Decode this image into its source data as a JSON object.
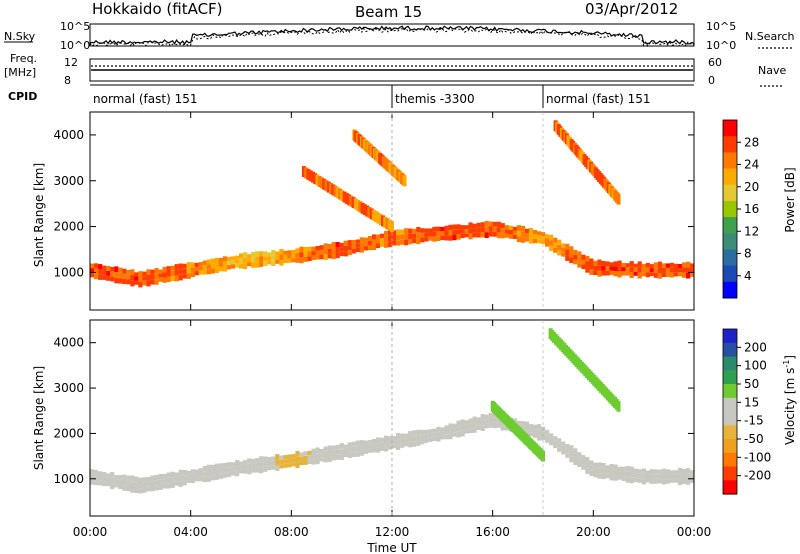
{
  "header": {
    "station": "Hokkaido (fitACF)",
    "beam": "Beam 15",
    "date": "03/Apr/2012"
  },
  "top_panels": {
    "nsky_label": "N.Sky",
    "nsearch_label": "N.Search",
    "nsky_ticks": [
      "10^5",
      "10^0"
    ],
    "freq_label_line1": "Freq.",
    "freq_label_line2": "[MHz]",
    "freq_ticks": [
      "12",
      "8"
    ],
    "nave_label": "Nave",
    "nave_ticks": [
      "60",
      "0"
    ],
    "cpid_label": "CPID",
    "cpid_segments": [
      {
        "label": "normal (fast) 151",
        "start_hour": 0,
        "end_hour": 12
      },
      {
        "label": "themis -3300",
        "start_hour": 12,
        "end_hour": 18
      },
      {
        "label": "normal (fast) 151",
        "start_hour": 18,
        "end_hour": 24
      }
    ]
  },
  "axes": {
    "xlabel": "Time UT",
    "x_ticks": [
      "00:00",
      "04:00",
      "08:00",
      "12:00",
      "16:00",
      "20:00",
      "00:00"
    ],
    "ylabel": "Slant Range [km]",
    "y_ticks": [
      "1000",
      "2000",
      "3000",
      "4000"
    ]
  },
  "colorbars": {
    "power": {
      "label": "Power [dB]",
      "ticks": [
        "28",
        "24",
        "20",
        "16",
        "12",
        "8",
        "4"
      ],
      "colors": [
        "#ff0000",
        "#ff3c00",
        "#ff7800",
        "#ffaa00",
        "#e6c832",
        "#9ac800",
        "#3fa050",
        "#3c8c78",
        "#2a6ea0",
        "#1a4ab4",
        "#0000ff"
      ]
    },
    "velocity": {
      "label": "Velocity [m s",
      "label_sup": "-1",
      "label_end": "]",
      "ticks": [
        "200",
        "100",
        "50",
        "15",
        "-15",
        "-50",
        "-100",
        "-200"
      ],
      "colors": [
        "#2020c8",
        "#2850a0",
        "#2a8a6e",
        "#30a050",
        "#6ccc30",
        "#c8c8c0",
        "#c8c8c0",
        "#e6b43c",
        "#f0a020",
        "#ff7800",
        "#ff3c00",
        "#ff0000"
      ]
    }
  },
  "chart_data": [
    {
      "type": "heatmap",
      "title": "Power [dB]",
      "xlabel": "Time UT",
      "ylabel": "Slant Range [km]",
      "x_range_hours": [
        0,
        24
      ],
      "ylim": [
        180,
        4500
      ],
      "color_range": [
        0,
        32
      ],
      "main_echo_band": {
        "time_hours": [
          0,
          2,
          4,
          6,
          8,
          10,
          12,
          14,
          16,
          18,
          20,
          22,
          24
        ],
        "range_km": [
          1050,
          850,
          1050,
          1250,
          1350,
          1500,
          1750,
          1850,
          1950,
          1750,
          1100,
          1050,
          1050
        ],
        "power_db": [
          28,
          28,
          26,
          22,
          24,
          28,
          26,
          28,
          28,
          24,
          28,
          28,
          28
        ]
      },
      "upper_echo_traces": [
        {
          "time_hours": [
            8.5,
            12
          ],
          "range_km": [
            3200,
            2000
          ]
        },
        {
          "time_hours": [
            10.5,
            12.5
          ],
          "range_km": [
            4000,
            3000
          ]
        },
        {
          "time_hours": [
            18.5,
            21
          ],
          "range_km": [
            4200,
            2600
          ]
        }
      ]
    },
    {
      "type": "heatmap",
      "title": "Velocity [m s-1]",
      "xlabel": "Time UT",
      "ylabel": "Slant Range [km]",
      "x_range_hours": [
        0,
        24
      ],
      "ylim": [
        180,
        4500
      ],
      "color_range": [
        -200,
        200
      ],
      "main_echo_band": {
        "time_hours": [
          0,
          2,
          4,
          6,
          8,
          10,
          12,
          14,
          16,
          18,
          20,
          22,
          24
        ],
        "range_km": [
          1050,
          850,
          1050,
          1250,
          1400,
          1600,
          1800,
          2000,
          2300,
          2000,
          1200,
          1050,
          1050
        ],
        "velocity_ms": [
          -5,
          -5,
          0,
          0,
          -20,
          0,
          0,
          5,
          0,
          0,
          5,
          0,
          0
        ]
      },
      "upper_echo_traces": [
        {
          "time_hours": [
            16,
            18
          ],
          "range_km": [
            2600,
            1500
          ],
          "velocity_ms": 30
        },
        {
          "time_hours": [
            18.3,
            21
          ],
          "range_km": [
            4200,
            2600
          ],
          "velocity_ms": 30
        }
      ]
    }
  ]
}
